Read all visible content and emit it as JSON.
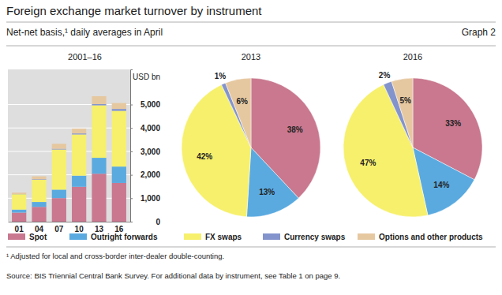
{
  "title": "Foreign exchange market turnover by instrument",
  "subtitle": "Net-net basis,¹ daily averages in April",
  "graph_label": "Graph 2",
  "chart_data": [
    {
      "type": "bar",
      "title": "2001–16",
      "stacked": true,
      "grid": true,
      "legend": "bottom",
      "y_label": "USD bn",
      "categories": [
        "01",
        "04",
        "07",
        "10",
        "13",
        "16"
      ],
      "ylim": [
        0,
        6500
      ],
      "yticks": [
        0,
        {
          "value": 1000,
          "label": "1,000"
        },
        {
          "value": 2000,
          "label": "2,000"
        },
        {
          "value": 3000,
          "label": "3,000"
        },
        {
          "value": 4000,
          "label": "4,000"
        },
        {
          "value": 5000,
          "label": "5,000"
        }
      ],
      "series": [
        {
          "name": "Spot",
          "color": "#c9788f",
          "values": [
            386,
            631,
            1005,
            1489,
            2047,
            1652
          ]
        },
        {
          "name": "Outright forwards",
          "color": "#5aaae0",
          "values": [
            130,
            209,
            362,
            475,
            679,
            700
          ]
        },
        {
          "name": "FX swaps",
          "color": "#f6f06c",
          "values": [
            656,
            954,
            1714,
            1759,
            2240,
            2378
          ]
        },
        {
          "name": "Currency swaps",
          "color": "#8393cc",
          "values": [
            7,
            21,
            31,
            43,
            54,
            82
          ]
        },
        {
          "name": "Options and other products",
          "color": "#e6c8a0",
          "values": [
            60,
            119,
            212,
            207,
            337,
            254
          ]
        }
      ]
    },
    {
      "type": "pie",
      "title": "2013",
      "data_labels": true,
      "values": [
        38,
        13,
        42,
        1,
        6
      ],
      "value_labels": [
        "38%",
        "13%",
        "42%",
        "1%",
        "6%"
      ],
      "colors": [
        "#c9788f",
        "#5aaae0",
        "#f6f06c",
        "#8393cc",
        "#e6c8a0"
      ]
    },
    {
      "type": "pie",
      "title": "2016",
      "data_labels": true,
      "values": [
        33,
        14,
        47,
        2,
        5
      ],
      "value_labels": [
        "33%",
        "14%",
        "47%",
        "2%",
        "5%"
      ],
      "colors": [
        "#c9788f",
        "#5aaae0",
        "#f6f06c",
        "#8393cc",
        "#e6c8a0"
      ]
    }
  ],
  "footnote": "¹ Adjusted for local and cross-border inter-dealer double-counting.",
  "source": "Source: BIS Triennial Central Bank Survey. For additional data by instrument, see Table 1 on page 9."
}
